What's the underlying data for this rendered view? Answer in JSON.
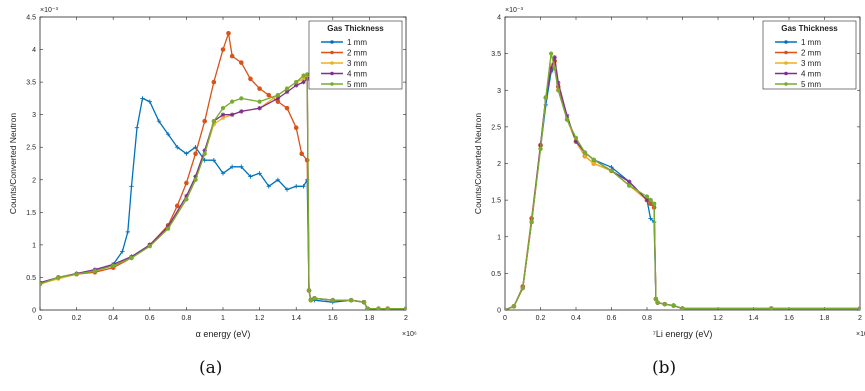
{
  "chart_data": [
    {
      "type": "line",
      "caption": "(a)",
      "xlabel": "α energy (eV)",
      "ylabel": "Counts/Converted Neutron",
      "x_exponent": "×10⁶",
      "y_exponent": "×10⁻³",
      "xlim": [
        0,
        2
      ],
      "ylim": [
        0,
        4.5
      ],
      "xticks": [
        0,
        0.2,
        0.4,
        0.6,
        0.8,
        1,
        1.2,
        1.4,
        1.6,
        1.8,
        2
      ],
      "xtick_labels": [
        "0",
        "0.2",
        "0.4",
        "0.6",
        "0.8",
        "1",
        "1.2",
        "1.4",
        "1.6",
        "1.8",
        "2"
      ],
      "yticks": [
        0,
        0.5,
        1,
        1.5,
        2,
        2.5,
        3,
        3.5,
        4,
        4.5
      ],
      "ytick_labels": [
        "0",
        "0.5",
        "1",
        "1.5",
        "2",
        "2.5",
        "3",
        "3.5",
        "4",
        "4.5"
      ],
      "grid": false,
      "legend": {
        "title": "Gas Thickness",
        "position": "top-right"
      },
      "series": [
        {
          "name": "1 mm",
          "color": "#0072BD",
          "x": [
            0,
            0.1,
            0.2,
            0.3,
            0.4,
            0.45,
            0.48,
            0.5,
            0.53,
            0.56,
            0.6,
            0.65,
            0.7,
            0.75,
            0.8,
            0.85,
            0.9,
            0.95,
            1.0,
            1.05,
            1.1,
            1.15,
            1.2,
            1.25,
            1.3,
            1.35,
            1.4,
            1.44,
            1.46,
            1.47,
            1.48,
            1.5,
            1.6,
            1.7,
            1.77,
            1.79,
            1.85,
            1.9,
            2.0
          ],
          "y": [
            0.4,
            0.5,
            0.55,
            0.6,
            0.7,
            0.9,
            1.2,
            1.9,
            2.8,
            3.25,
            3.2,
            2.9,
            2.7,
            2.5,
            2.4,
            2.5,
            2.3,
            2.3,
            2.1,
            2.2,
            2.2,
            2.05,
            2.1,
            1.9,
            2.0,
            1.85,
            1.9,
            1.9,
            2.0,
            0.3,
            0.15,
            0.15,
            0.12,
            0.15,
            0.12,
            0.02,
            0.02,
            0.02,
            0.02
          ]
        },
        {
          "name": "2 mm",
          "color": "#D95319",
          "x": [
            0,
            0.1,
            0.2,
            0.3,
            0.4,
            0.5,
            0.6,
            0.7,
            0.75,
            0.8,
            0.85,
            0.9,
            0.95,
            1.0,
            1.03,
            1.05,
            1.1,
            1.15,
            1.2,
            1.25,
            1.3,
            1.35,
            1.4,
            1.43,
            1.46,
            1.47,
            1.48,
            1.5,
            1.6,
            1.7,
            1.77,
            1.79,
            1.85,
            1.9,
            2.0
          ],
          "y": [
            0.4,
            0.5,
            0.55,
            0.58,
            0.65,
            0.8,
            1.0,
            1.3,
            1.6,
            1.95,
            2.4,
            2.9,
            3.5,
            4.0,
            4.25,
            3.9,
            3.8,
            3.55,
            3.4,
            3.3,
            3.2,
            3.1,
            2.8,
            2.4,
            2.3,
            0.3,
            0.15,
            0.18,
            0.15,
            0.15,
            0.12,
            0.02,
            0.02,
            0.02,
            0.02
          ]
        },
        {
          "name": "3 mm",
          "color": "#EDB120",
          "x": [
            0,
            0.1,
            0.2,
            0.3,
            0.4,
            0.5,
            0.6,
            0.7,
            0.8,
            0.85,
            0.9,
            0.95,
            1.0,
            1.05,
            1.1,
            1.2,
            1.3,
            1.35,
            1.4,
            1.44,
            1.46,
            1.47,
            1.48,
            1.5,
            1.6,
            1.7,
            1.77,
            1.79,
            1.85,
            1.9,
            2.0
          ],
          "y": [
            0.4,
            0.48,
            0.55,
            0.6,
            0.68,
            0.8,
            0.98,
            1.25,
            1.7,
            2.0,
            2.4,
            2.85,
            2.95,
            3.0,
            3.05,
            3.1,
            3.3,
            3.4,
            3.5,
            3.55,
            3.6,
            0.3,
            0.15,
            0.18,
            0.15,
            0.15,
            0.12,
            0.02,
            0.02,
            0.02,
            0.02
          ]
        },
        {
          "name": "4 mm",
          "color": "#7E2F8E",
          "x": [
            0,
            0.1,
            0.2,
            0.3,
            0.4,
            0.5,
            0.6,
            0.7,
            0.8,
            0.85,
            0.9,
            0.95,
            1.0,
            1.05,
            1.1,
            1.2,
            1.3,
            1.35,
            1.4,
            1.44,
            1.46,
            1.47,
            1.48,
            1.5,
            1.6,
            1.7,
            1.77,
            1.79,
            1.85,
            1.9,
            2.0
          ],
          "y": [
            0.42,
            0.5,
            0.56,
            0.62,
            0.7,
            0.82,
            1.0,
            1.28,
            1.75,
            2.05,
            2.45,
            2.9,
            3.0,
            3.0,
            3.05,
            3.1,
            3.25,
            3.35,
            3.45,
            3.5,
            3.55,
            0.3,
            0.16,
            0.18,
            0.15,
            0.15,
            0.12,
            0.02,
            0.02,
            0.02,
            0.02
          ]
        },
        {
          "name": "5 mm",
          "color": "#77AC30",
          "x": [
            0,
            0.1,
            0.2,
            0.3,
            0.4,
            0.5,
            0.6,
            0.7,
            0.8,
            0.85,
            0.9,
            0.95,
            1.0,
            1.05,
            1.1,
            1.2,
            1.3,
            1.35,
            1.4,
            1.44,
            1.46,
            1.47,
            1.48,
            1.5,
            1.6,
            1.7,
            1.77,
            1.79,
            1.85,
            1.9,
            2.0
          ],
          "y": [
            0.4,
            0.5,
            0.55,
            0.6,
            0.68,
            0.8,
            0.98,
            1.25,
            1.7,
            2.0,
            2.4,
            2.9,
            3.1,
            3.2,
            3.25,
            3.2,
            3.3,
            3.4,
            3.5,
            3.6,
            3.62,
            0.3,
            0.15,
            0.18,
            0.15,
            0.15,
            0.12,
            0.02,
            0.02,
            0.02,
            0.02
          ]
        }
      ]
    },
    {
      "type": "line",
      "caption": "(b)",
      "xlabel": "⁷Li energy (eV)",
      "ylabel": "Counts/Converted Neutron",
      "x_exponent": "×10⁶",
      "y_exponent": "×10⁻³",
      "xlim": [
        0,
        2
      ],
      "ylim": [
        0,
        4
      ],
      "xticks": [
        0,
        0.2,
        0.4,
        0.6,
        0.8,
        1,
        1.2,
        1.4,
        1.6,
        1.8,
        2
      ],
      "xtick_labels": [
        "0",
        "0.2",
        "0.4",
        "0.6",
        "0.8",
        "1",
        "1.2",
        "1.4",
        "1.6",
        "1.8",
        "2"
      ],
      "yticks": [
        0,
        0.5,
        1,
        1.5,
        2,
        2.5,
        3,
        3.5,
        4
      ],
      "ytick_labels": [
        "0",
        "0.5",
        "1",
        "1.5",
        "2",
        "2.5",
        "3",
        "3.5",
        "4"
      ],
      "grid": false,
      "legend": {
        "title": "Gas Thickness",
        "position": "top-right"
      },
      "series": [
        {
          "name": "1 mm",
          "color": "#0072BD",
          "x": [
            0,
            0.05,
            0.1,
            0.15,
            0.2,
            0.23,
            0.26,
            0.28,
            0.3,
            0.35,
            0.4,
            0.45,
            0.5,
            0.6,
            0.7,
            0.8,
            0.82,
            0.84,
            0.85,
            0.86,
            0.9,
            0.95,
            1.0,
            1.5,
            2.0
          ],
          "y": [
            0,
            0.05,
            0.3,
            1.2,
            2.2,
            2.8,
            3.25,
            3.3,
            3.0,
            2.6,
            2.3,
            2.15,
            2.05,
            1.95,
            1.75,
            1.5,
            1.25,
            1.2,
            0.15,
            0.1,
            0.08,
            0.06,
            0.02,
            0.02,
            0.02
          ]
        },
        {
          "name": "2 mm",
          "color": "#D95319",
          "x": [
            0,
            0.05,
            0.1,
            0.15,
            0.2,
            0.23,
            0.26,
            0.28,
            0.3,
            0.35,
            0.4,
            0.45,
            0.5,
            0.6,
            0.7,
            0.8,
            0.82,
            0.84,
            0.85,
            0.86,
            0.9,
            0.95,
            1.0,
            1.5,
            2.0
          ],
          "y": [
            0,
            0.05,
            0.32,
            1.25,
            2.25,
            2.9,
            3.3,
            3.4,
            3.05,
            2.6,
            2.3,
            2.1,
            2.0,
            1.9,
            1.7,
            1.5,
            1.45,
            1.4,
            0.15,
            0.1,
            0.08,
            0.06,
            0.02,
            0.02,
            0.02
          ]
        },
        {
          "name": "3 mm",
          "color": "#EDB120",
          "x": [
            0,
            0.05,
            0.1,
            0.15,
            0.2,
            0.23,
            0.26,
            0.28,
            0.3,
            0.35,
            0.4,
            0.45,
            0.5,
            0.6,
            0.7,
            0.8,
            0.82,
            0.84,
            0.85,
            0.86,
            0.9,
            0.95,
            1.0,
            1.5,
            2.0
          ],
          "y": [
            0,
            0.05,
            0.3,
            1.2,
            2.2,
            2.9,
            3.35,
            3.3,
            3.0,
            2.6,
            2.3,
            2.1,
            2.0,
            1.9,
            1.7,
            1.5,
            1.5,
            1.45,
            0.15,
            0.1,
            0.08,
            0.06,
            0.02,
            0.02,
            0.02
          ]
        },
        {
          "name": "4 mm",
          "color": "#7E2F8E",
          "x": [
            0,
            0.05,
            0.1,
            0.15,
            0.2,
            0.23,
            0.26,
            0.28,
            0.3,
            0.35,
            0.4,
            0.45,
            0.5,
            0.6,
            0.7,
            0.8,
            0.82,
            0.84,
            0.85,
            0.86,
            0.9,
            0.95,
            1.0,
            1.5,
            2.0
          ],
          "y": [
            0,
            0.05,
            0.3,
            1.2,
            2.25,
            2.9,
            3.3,
            3.45,
            3.1,
            2.65,
            2.3,
            2.15,
            2.05,
            1.9,
            1.75,
            1.5,
            1.5,
            1.45,
            0.15,
            0.1,
            0.08,
            0.06,
            0.02,
            0.02,
            0.02
          ]
        },
        {
          "name": "5 mm",
          "color": "#77AC30",
          "x": [
            0,
            0.05,
            0.1,
            0.15,
            0.2,
            0.23,
            0.26,
            0.28,
            0.3,
            0.35,
            0.4,
            0.45,
            0.5,
            0.6,
            0.7,
            0.8,
            0.82,
            0.84,
            0.85,
            0.86,
            0.9,
            0.95,
            1.0,
            1.5,
            2.0
          ],
          "y": [
            0,
            0.05,
            0.3,
            1.2,
            2.2,
            2.9,
            3.5,
            3.3,
            3.0,
            2.6,
            2.35,
            2.15,
            2.05,
            1.9,
            1.7,
            1.55,
            1.5,
            1.45,
            0.15,
            0.1,
            0.08,
            0.06,
            0.02,
            0.02,
            0.02
          ]
        }
      ]
    }
  ]
}
